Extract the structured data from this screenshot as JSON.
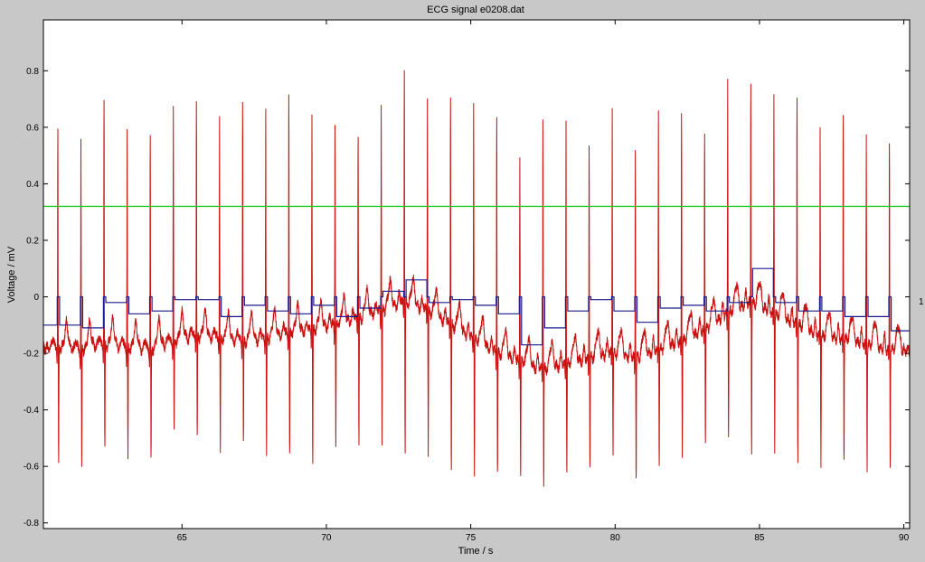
{
  "chart_data": {
    "type": "line",
    "title": "ECG signal e0208.dat",
    "xlabel": "Time / s",
    "ylabel": "Voltage / mV",
    "xlim": [
      60.2,
      90.2
    ],
    "ylim": [
      -0.82,
      0.98
    ],
    "x_ticks": [
      65,
      70,
      75,
      80,
      85,
      90
    ],
    "y_ticks": [
      -0.8,
      -0.6,
      -0.4,
      -0.2,
      0,
      0.2,
      0.4,
      0.6,
      0.8
    ],
    "x_tick_labels": [
      "65",
      "70",
      "75",
      "80",
      "85",
      "90"
    ],
    "y_tick_labels": [
      "-0.8",
      "-0.6",
      "-0.4",
      "-0.2",
      "0",
      "0.2",
      "0.4",
      "0.6",
      "0.8"
    ],
    "grid": false,
    "legend": "none",
    "beat_times": [
      60.7,
      61.5,
      62.3,
      63.1,
      63.9,
      64.7,
      65.5,
      66.3,
      67.1,
      67.9,
      68.7,
      69.5,
      70.3,
      71.1,
      71.9,
      72.7,
      73.5,
      74.3,
      75.1,
      75.9,
      76.7,
      77.5,
      78.3,
      79.1,
      79.9,
      80.7,
      81.5,
      82.3,
      83.1,
      83.9,
      84.7,
      85.5,
      86.3,
      87.1,
      87.9,
      88.7,
      89.5
    ],
    "series": [
      {
        "color": "#cc1111",
        "r_peak_values": [
          0.59,
          0.56,
          0.71,
          0.59,
          0.58,
          0.69,
          0.69,
          0.63,
          0.71,
          0.67,
          0.71,
          0.66,
          0.63,
          0.58,
          0.68,
          0.8,
          0.7,
          0.72,
          0.71,
          0.64,
          0.52,
          0.63,
          0.65,
          0.56,
          0.67,
          0.52,
          0.66,
          0.65,
          0.6,
          0.78,
          0.75,
          0.71,
          0.71,
          0.61,
          0.66,
          0.57,
          0.55
        ],
        "s_trough_values": [
          -0.59,
          -0.62,
          -0.54,
          -0.58,
          -0.57,
          -0.49,
          -0.51,
          -0.55,
          -0.53,
          -0.56,
          -0.57,
          -0.59,
          -0.53,
          -0.52,
          -0.52,
          -0.54,
          -0.57,
          -0.61,
          -0.62,
          -0.62,
          -0.64,
          -0.66,
          -0.63,
          -0.61,
          -0.55,
          -0.64,
          -0.59,
          -0.55,
          -0.5,
          -0.5,
          -0.54,
          -0.53,
          -0.56,
          -0.58,
          -0.57,
          -0.6,
          -0.58
        ],
        "baseline_values": [
          -0.18,
          -0.19,
          -0.17,
          -0.18,
          -0.19,
          -0.16,
          -0.14,
          -0.15,
          -0.16,
          -0.15,
          -0.13,
          -0.12,
          -0.1,
          -0.08,
          -0.05,
          -0.02,
          -0.05,
          -0.1,
          -0.15,
          -0.2,
          -0.23,
          -0.26,
          -0.24,
          -0.22,
          -0.2,
          -0.22,
          -0.19,
          -0.16,
          -0.12,
          -0.06,
          -0.02,
          -0.06,
          -0.1,
          -0.14,
          -0.15,
          -0.17,
          -0.19
        ]
      },
      {
        "color": "#22cc22",
        "value": 0.32
      },
      {
        "color": "#1a1a8c",
        "step_values": [
          -0.1,
          -0.11,
          -0.02,
          -0.06,
          -0.05,
          -0.01,
          -0.01,
          -0.07,
          -0.03,
          -0.05,
          -0.06,
          -0.03,
          -0.07,
          -0.04,
          0.02,
          0.06,
          -0.02,
          -0.01,
          -0.03,
          -0.06,
          -0.17,
          -0.11,
          -0.05,
          -0.01,
          -0.05,
          -0.09,
          -0.04,
          -0.03,
          -0.05,
          -0.02,
          0.1,
          -0.02,
          -0.05,
          -0.05,
          -0.07,
          -0.07,
          -0.12
        ]
      }
    ],
    "right_edge_label": "1"
  }
}
